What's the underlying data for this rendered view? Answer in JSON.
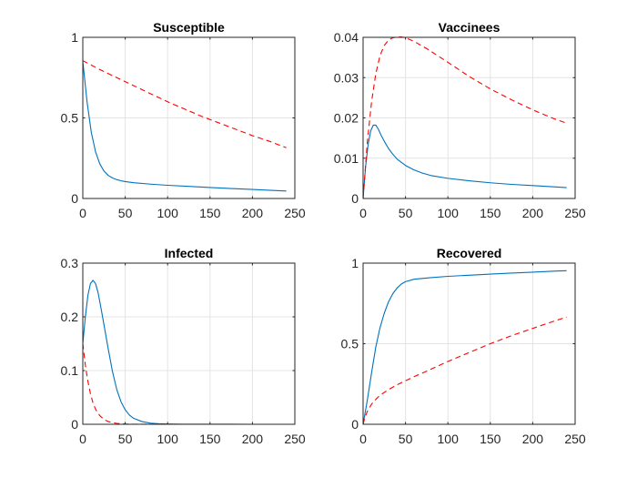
{
  "chart_data": [
    {
      "type": "line",
      "title": "Susceptible",
      "xlabel": "",
      "ylabel": "",
      "xlim": [
        0,
        250
      ],
      "ylim": [
        0,
        1
      ],
      "xticks": [
        0,
        50,
        100,
        150,
        200,
        250
      ],
      "xtick_labels": [
        "0",
        "50",
        "100",
        "150",
        "200",
        "250"
      ],
      "yticks": [
        0,
        0.5,
        1
      ],
      "ytick_labels": [
        "0",
        "0.5",
        "1"
      ],
      "grid": true,
      "series": [
        {
          "name": "solid",
          "color": "#0072BD",
          "style": "solid",
          "x": [
            0,
            5,
            10,
            15,
            20,
            25,
            30,
            35,
            40,
            45,
            50,
            60,
            80,
            100,
            125,
            150,
            175,
            200,
            225,
            240
          ],
          "y": [
            0.85,
            0.6,
            0.41,
            0.29,
            0.215,
            0.17,
            0.143,
            0.127,
            0.117,
            0.11,
            0.105,
            0.098,
            0.089,
            0.082,
            0.075,
            0.068,
            0.062,
            0.056,
            0.05,
            0.046
          ]
        },
        {
          "name": "dashed",
          "color": "#FF0000",
          "style": "dashed",
          "x": [
            0,
            20,
            40,
            60,
            80,
            100,
            120,
            140,
            160,
            180,
            200,
            220,
            240
          ],
          "y": [
            0.855,
            0.8,
            0.75,
            0.7,
            0.65,
            0.6,
            0.555,
            0.51,
            0.47,
            0.43,
            0.39,
            0.355,
            0.315
          ]
        }
      ]
    },
    {
      "type": "line",
      "title": "Vaccinees",
      "xlabel": "",
      "ylabel": "",
      "xlim": [
        0,
        250
      ],
      "ylim": [
        0,
        0.04
      ],
      "xticks": [
        0,
        50,
        100,
        150,
        200,
        250
      ],
      "xtick_labels": [
        "0",
        "50",
        "100",
        "150",
        "200",
        "250"
      ],
      "yticks": [
        0,
        0.01,
        0.02,
        0.03,
        0.04
      ],
      "ytick_labels": [
        "0",
        "0.01",
        "0.02",
        "0.03",
        "0.04"
      ],
      "grid": true,
      "series": [
        {
          "name": "solid",
          "color": "#0072BD",
          "style": "solid",
          "x": [
            0,
            3,
            6,
            9,
            12,
            15,
            18,
            21,
            25,
            30,
            35,
            40,
            50,
            60,
            70,
            80,
            100,
            125,
            150,
            175,
            200,
            225,
            240
          ],
          "y": [
            0,
            0.008,
            0.0135,
            0.0168,
            0.0182,
            0.0182,
            0.0172,
            0.0158,
            0.0142,
            0.0124,
            0.011,
            0.0098,
            0.0082,
            0.0071,
            0.0063,
            0.0057,
            0.005,
            0.0044,
            0.0039,
            0.0035,
            0.0032,
            0.0029,
            0.0027
          ]
        },
        {
          "name": "dashed",
          "color": "#FF0000",
          "style": "dashed",
          "x": [
            0,
            5,
            10,
            15,
            20,
            25,
            30,
            35,
            40,
            45,
            50,
            60,
            75,
            100,
            125,
            150,
            175,
            200,
            225,
            240
          ],
          "y": [
            0,
            0.014,
            0.024,
            0.031,
            0.0355,
            0.038,
            0.0393,
            0.0399,
            0.0401,
            0.0401,
            0.0399,
            0.039,
            0.0372,
            0.0338,
            0.0303,
            0.0272,
            0.0245,
            0.022,
            0.0198,
            0.0187
          ]
        }
      ]
    },
    {
      "type": "line",
      "title": "Infected",
      "xlabel": "",
      "ylabel": "",
      "xlim": [
        0,
        250
      ],
      "ylim": [
        0,
        0.3
      ],
      "xticks": [
        0,
        50,
        100,
        150,
        200,
        250
      ],
      "xtick_labels": [
        "0",
        "50",
        "100",
        "150",
        "200",
        "250"
      ],
      "yticks": [
        0,
        0.1,
        0.2,
        0.3
      ],
      "ytick_labels": [
        "0",
        "0.1",
        "0.2",
        "0.3"
      ],
      "grid": true,
      "series": [
        {
          "name": "solid",
          "color": "#0072BD",
          "style": "solid",
          "x": [
            0,
            3,
            6,
            9,
            12,
            15,
            18,
            21,
            25,
            30,
            35,
            40,
            45,
            50,
            55,
            60,
            70,
            80,
            90,
            100,
            120,
            150,
            200,
            240
          ],
          "y": [
            0.15,
            0.2,
            0.24,
            0.262,
            0.268,
            0.262,
            0.245,
            0.22,
            0.185,
            0.14,
            0.098,
            0.065,
            0.042,
            0.027,
            0.017,
            0.011,
            0.005,
            0.002,
            0.001,
            0.0005,
            0.0002,
            0.0001,
            0,
            0
          ]
        },
        {
          "name": "dashed",
          "color": "#FF0000",
          "style": "dashed",
          "x": [
            0,
            3,
            6,
            9,
            12,
            15,
            20,
            25,
            30,
            35,
            40,
            50,
            60,
            80,
            100,
            150,
            200,
            240
          ],
          "y": [
            0.15,
            0.11,
            0.08,
            0.057,
            0.04,
            0.028,
            0.016,
            0.009,
            0.005,
            0.003,
            0.0017,
            0.0006,
            0.0002,
            0,
            0,
            0,
            0,
            0
          ]
        }
      ]
    },
    {
      "type": "line",
      "title": "Recovered",
      "xlabel": "",
      "ylabel": "",
      "xlim": [
        0,
        250
      ],
      "ylim": [
        0,
        1
      ],
      "xticks": [
        0,
        50,
        100,
        150,
        200,
        250
      ],
      "xtick_labels": [
        "0",
        "50",
        "100",
        "150",
        "200",
        "250"
      ],
      "yticks": [
        0,
        0.5,
        1
      ],
      "ytick_labels": [
        "0",
        "0.5",
        "1"
      ],
      "grid": true,
      "series": [
        {
          "name": "solid",
          "color": "#0072BD",
          "style": "solid",
          "x": [
            0,
            5,
            10,
            15,
            20,
            25,
            30,
            35,
            40,
            45,
            50,
            60,
            80,
            100,
            125,
            150,
            175,
            200,
            225,
            240
          ],
          "y": [
            0,
            0.15,
            0.32,
            0.48,
            0.6,
            0.69,
            0.76,
            0.81,
            0.845,
            0.87,
            0.885,
            0.9,
            0.91,
            0.918,
            0.925,
            0.932,
            0.938,
            0.944,
            0.95,
            0.953
          ]
        },
        {
          "name": "dashed",
          "color": "#FF0000",
          "style": "dashed",
          "x": [
            0,
            2,
            5,
            10,
            15,
            20,
            30,
            40,
            50,
            60,
            75,
            100,
            125,
            150,
            175,
            200,
            225,
            240
          ],
          "y": [
            0,
            0.04,
            0.08,
            0.125,
            0.155,
            0.18,
            0.215,
            0.245,
            0.27,
            0.295,
            0.33,
            0.39,
            0.445,
            0.5,
            0.55,
            0.595,
            0.64,
            0.665
          ]
        }
      ]
    }
  ]
}
